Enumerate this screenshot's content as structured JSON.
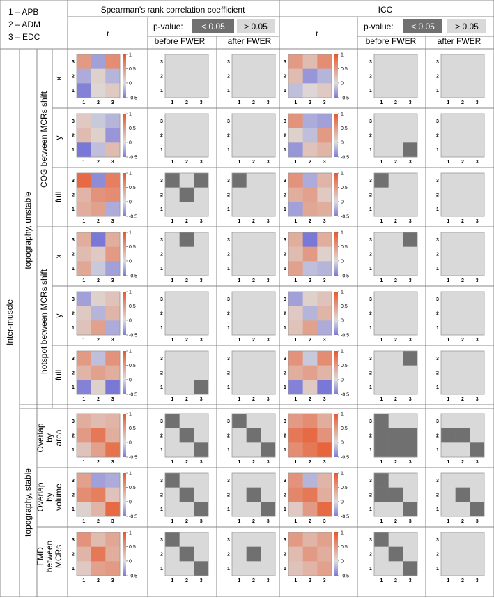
{
  "legend": [
    "1 – APB",
    "2 – ADM",
    "3 – EDC"
  ],
  "headers": {
    "spearman": "Spearman's rank correlation coefficient",
    "icc": "ICC",
    "r": "r",
    "pvalue": "p-value:",
    "sig": "< 0.05",
    "nonsig": "> 0.05",
    "before": "before FWER",
    "after": "after FWER"
  },
  "row_groups": {
    "inter": "Inter-muscle",
    "unstable": "topography, unstable",
    "stable": "topography, stable",
    "cog": "COG between MCRs shift",
    "hotspot": "hotspot between MCRs shift"
  },
  "colorbar_ticks": [
    "1",
    "0.5",
    "0",
    "-0.5"
  ],
  "axis_ticks": [
    "1",
    "2",
    "3"
  ],
  "colors": {
    "positive": "#e8572a",
    "negative": "#7a78d6",
    "neutral": "#dddddd",
    "sig_cell": "#707070",
    "nonsig_cell": "#d9d9d9",
    "border": "#777777"
  },
  "rows": [
    {
      "label": [
        "x"
      ],
      "spearman_r": [
        [
          0.5,
          -0.3,
          0.6
        ],
        [
          -0.25,
          0.1,
          -0.2
        ],
        [
          -0.45,
          0.05,
          0.15
        ]
      ],
      "spearman_before": [
        [
          0,
          0,
          0
        ],
        [
          0,
          0,
          0
        ],
        [
          0,
          0,
          0
        ]
      ],
      "spearman_after": [
        [
          0,
          0,
          0
        ],
        [
          0,
          0,
          0
        ],
        [
          0,
          0,
          0
        ]
      ],
      "icc_r": [
        [
          0.5,
          0.25,
          0.6
        ],
        [
          0.25,
          -0.35,
          -0.2
        ],
        [
          -0.15,
          0.05,
          0.15
        ]
      ],
      "icc_before": [
        [
          0,
          0,
          0
        ],
        [
          0,
          0,
          0
        ],
        [
          0,
          0,
          0
        ]
      ],
      "icc_after": [
        [
          0,
          0,
          0
        ],
        [
          0,
          0,
          0
        ],
        [
          0,
          0,
          0
        ]
      ]
    },
    {
      "label": [
        "y"
      ],
      "spearman_r": [
        [
          0.15,
          -0.1,
          -0.2
        ],
        [
          0.25,
          0.1,
          -0.35
        ],
        [
          -0.6,
          -0.15,
          0.25
        ]
      ],
      "spearman_before": [
        [
          0,
          0,
          0
        ],
        [
          0,
          0,
          0
        ],
        [
          0,
          0,
          0
        ]
      ],
      "spearman_after": [
        [
          0,
          0,
          0
        ],
        [
          0,
          0,
          0
        ],
        [
          0,
          0,
          0
        ]
      ],
      "icc_r": [
        [
          0.55,
          -0.25,
          -0.3
        ],
        [
          0.1,
          -0.15,
          0.5
        ],
        [
          -0.35,
          0.2,
          0.3
        ]
      ],
      "icc_before": [
        [
          0,
          0,
          0
        ],
        [
          0,
          0,
          0
        ],
        [
          0,
          0,
          1
        ]
      ],
      "icc_after": [
        [
          0,
          0,
          0
        ],
        [
          0,
          0,
          0
        ],
        [
          0,
          0,
          0
        ]
      ]
    },
    {
      "label": [
        "full"
      ],
      "spearman_r": [
        [
          0.85,
          -0.4,
          0.7
        ],
        [
          0.3,
          0.55,
          0.6
        ],
        [
          0.35,
          0.45,
          -0.25
        ]
      ],
      "spearman_before": [
        [
          1,
          0,
          1
        ],
        [
          0,
          1,
          0
        ],
        [
          0,
          0,
          0
        ]
      ],
      "spearman_after": [
        [
          1,
          0,
          0
        ],
        [
          0,
          0,
          0
        ],
        [
          0,
          0,
          0
        ]
      ],
      "icc_r": [
        [
          0.55,
          -0.25,
          0.3
        ],
        [
          0.35,
          0.45,
          0.15
        ],
        [
          -0.3,
          0.4,
          0.35
        ]
      ],
      "icc_before": [
        [
          1,
          0,
          0
        ],
        [
          0,
          0,
          0
        ],
        [
          0,
          0,
          0
        ]
      ],
      "icc_after": [
        [
          0,
          0,
          0
        ],
        [
          0,
          0,
          0
        ],
        [
          0,
          0,
          0
        ]
      ]
    },
    {
      "label": [
        "x"
      ],
      "spearman_r": [
        [
          0.35,
          -0.55,
          0.35
        ],
        [
          0.25,
          0.15,
          0.5
        ],
        [
          0.4,
          -0.1,
          -0.3
        ]
      ],
      "spearman_before": [
        [
          0,
          1,
          0
        ],
        [
          0,
          0,
          0
        ],
        [
          0,
          0,
          0
        ]
      ],
      "spearman_after": [
        [
          0,
          0,
          0
        ],
        [
          0,
          0,
          0
        ],
        [
          0,
          0,
          0
        ]
      ],
      "icc_r": [
        [
          0.35,
          -0.55,
          0.35
        ],
        [
          0.25,
          0.5,
          0.1
        ],
        [
          0.45,
          -0.15,
          -0.2
        ]
      ],
      "icc_before": [
        [
          0,
          0,
          1
        ],
        [
          0,
          0,
          0
        ],
        [
          0,
          0,
          0
        ]
      ],
      "icc_after": [
        [
          0,
          0,
          0
        ],
        [
          0,
          0,
          0
        ],
        [
          0,
          0,
          0
        ]
      ]
    },
    {
      "label": [
        "y"
      ],
      "spearman_r": [
        [
          -0.3,
          0.1,
          0.2
        ],
        [
          0.15,
          -0.2,
          0.3
        ],
        [
          0.2,
          0.45,
          -0.25
        ]
      ],
      "spearman_before": [
        [
          0,
          0,
          0
        ],
        [
          0,
          0,
          0
        ],
        [
          0,
          0,
          0
        ]
      ],
      "spearman_after": [
        [
          0,
          0,
          0
        ],
        [
          0,
          0,
          0
        ],
        [
          0,
          0,
          0
        ]
      ],
      "icc_r": [
        [
          -0.3,
          0.1,
          0.2
        ],
        [
          0.15,
          -0.2,
          0.3
        ],
        [
          0.2,
          0.45,
          -0.25
        ]
      ],
      "icc_before": [
        [
          0,
          0,
          0
        ],
        [
          0,
          0,
          0
        ],
        [
          0,
          0,
          0
        ]
      ],
      "icc_after": [
        [
          0,
          0,
          0
        ],
        [
          0,
          0,
          0
        ],
        [
          0,
          0,
          0
        ]
      ]
    },
    {
      "label": [
        "full"
      ],
      "spearman_r": [
        [
          0.5,
          -0.15,
          0.55
        ],
        [
          0.3,
          0.45,
          0.35
        ],
        [
          -0.45,
          0.1,
          -0.5
        ]
      ],
      "spearman_before": [
        [
          0,
          0,
          0
        ],
        [
          0,
          0,
          0
        ],
        [
          0,
          0,
          1
        ]
      ],
      "spearman_after": [
        [
          0,
          0,
          0
        ],
        [
          0,
          0,
          0
        ],
        [
          0,
          0,
          0
        ]
      ],
      "icc_r": [
        [
          0.55,
          -0.1,
          0.6
        ],
        [
          0.35,
          0.45,
          0.3
        ],
        [
          -0.45,
          0.15,
          -0.5
        ]
      ],
      "icc_before": [
        [
          0,
          0,
          1
        ],
        [
          0,
          0,
          0
        ],
        [
          0,
          0,
          0
        ]
      ],
      "icc_after": [
        [
          0,
          0,
          0
        ],
        [
          0,
          0,
          0
        ],
        [
          0,
          0,
          0
        ]
      ]
    },
    {
      "label": [
        "Overlap",
        "by",
        "area"
      ],
      "spearman_r": [
        [
          0.35,
          0.25,
          0.3
        ],
        [
          0.5,
          0.75,
          0.35
        ],
        [
          0.2,
          0.45,
          0.8
        ]
      ],
      "spearman_before": [
        [
          1,
          0,
          0
        ],
        [
          0,
          1,
          0
        ],
        [
          0,
          0,
          1
        ]
      ],
      "spearman_after": [
        [
          1,
          0,
          0
        ],
        [
          0,
          1,
          0
        ],
        [
          0,
          0,
          1
        ]
      ],
      "icc_r": [
        [
          0.5,
          0.6,
          0.35
        ],
        [
          0.75,
          0.85,
          0.55
        ],
        [
          0.6,
          0.75,
          0.9
        ]
      ],
      "icc_before": [
        [
          1,
          0,
          0
        ],
        [
          1,
          1,
          1
        ],
        [
          1,
          1,
          1
        ]
      ],
      "icc_after": [
        [
          0,
          0,
          0
        ],
        [
          1,
          1,
          0
        ],
        [
          0,
          0,
          1
        ]
      ]
    },
    {
      "label": [
        "Overlap",
        "by",
        "volume"
      ],
      "spearman_r": [
        [
          0.45,
          -0.3,
          -0.25
        ],
        [
          0.6,
          0.7,
          0.2
        ],
        [
          0.1,
          0.3,
          0.85
        ]
      ],
      "spearman_before": [
        [
          1,
          0,
          0
        ],
        [
          0,
          1,
          0
        ],
        [
          0,
          0,
          1
        ]
      ],
      "spearman_after": [
        [
          0,
          0,
          0
        ],
        [
          0,
          1,
          0
        ],
        [
          0,
          0,
          1
        ]
      ],
      "icc_r": [
        [
          0.55,
          -0.2,
          0.3
        ],
        [
          0.65,
          0.75,
          0.35
        ],
        [
          0.15,
          0.5,
          0.85
        ]
      ],
      "icc_before": [
        [
          1,
          0,
          0
        ],
        [
          1,
          1,
          0
        ],
        [
          0,
          0,
          1
        ]
      ],
      "icc_after": [
        [
          0,
          0,
          0
        ],
        [
          0,
          1,
          0
        ],
        [
          0,
          0,
          1
        ]
      ]
    },
    {
      "label": [
        "EMD",
        "between",
        "MCRs"
      ],
      "spearman_r": [
        [
          0.55,
          0.25,
          0.4
        ],
        [
          0.3,
          0.75,
          0.35
        ],
        [
          0.15,
          0.45,
          0.5
        ]
      ],
      "spearman_before": [
        [
          1,
          0,
          0
        ],
        [
          0,
          1,
          0
        ],
        [
          0,
          0,
          1
        ]
      ],
      "spearman_after": [
        [
          0,
          0,
          0
        ],
        [
          0,
          1,
          0
        ],
        [
          0,
          0,
          0
        ]
      ],
      "icc_r": [
        [
          0.5,
          0.3,
          0.45
        ],
        [
          0.25,
          0.5,
          0.35
        ],
        [
          0.2,
          0.3,
          0.45
        ]
      ],
      "icc_before": [
        [
          1,
          0,
          0
        ],
        [
          0,
          1,
          0
        ],
        [
          0,
          0,
          1
        ]
      ],
      "icc_after": [
        [
          0,
          0,
          0
        ],
        [
          0,
          0,
          0
        ],
        [
          0,
          0,
          0
        ]
      ]
    }
  ]
}
